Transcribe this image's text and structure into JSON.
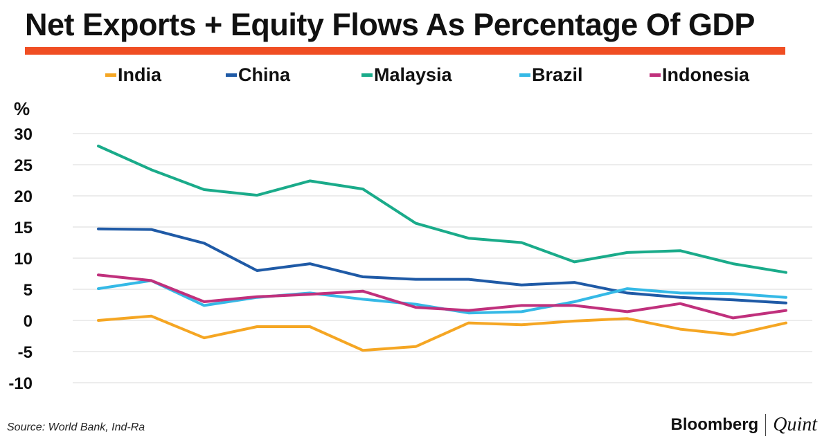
{
  "header": {
    "title": "Net Exports + Equity Flows As Percentage Of GDP",
    "rule_color": "#f04e23"
  },
  "chart_data": {
    "type": "line",
    "title": "Net Exports + Equity Flows As Percentage Of GDP",
    "ylabel": "%",
    "xlabel": "",
    "ylim": [
      -10,
      30
    ],
    "yticks": [
      30,
      25,
      20,
      15,
      10,
      5,
      0,
      -5,
      -10
    ],
    "grid": true,
    "legend_position": "top",
    "x": [
      1,
      2,
      3,
      4,
      5,
      6,
      7,
      8,
      9,
      10,
      11,
      12,
      13,
      14
    ],
    "series": [
      {
        "name": "India",
        "color": "#f5a623",
        "values": [
          0,
          0.7,
          -2.8,
          -1,
          -1,
          -4.8,
          -4.2,
          -0.4,
          -0.7,
          -0.1,
          0.3,
          -1.4,
          -2.3,
          -0.4
        ]
      },
      {
        "name": "China",
        "color": "#1f5aa6",
        "values": [
          14.7,
          14.6,
          12.4,
          8,
          9.1,
          7,
          6.6,
          6.6,
          5.7,
          6.1,
          4.4,
          3.7,
          3.3,
          2.8
        ]
      },
      {
        "name": "Malaysia",
        "color": "#1aab8a",
        "values": [
          28,
          24.2,
          21,
          20.1,
          22.4,
          21.1,
          15.6,
          13.2,
          12.5,
          9.4,
          10.9,
          11.2,
          9.1,
          7.7
        ]
      },
      {
        "name": "Brazil",
        "color": "#35b9e6",
        "values": [
          5.1,
          6.4,
          2.4,
          3.7,
          4.4,
          3.4,
          2.6,
          1.2,
          1.4,
          3,
          5.1,
          4.4,
          4.3,
          3.7
        ]
      },
      {
        "name": "Indonesia",
        "color": "#c0307c",
        "values": [
          7.3,
          6.4,
          3,
          3.8,
          4.2,
          4.7,
          2.1,
          1.6,
          2.4,
          2.4,
          1.4,
          2.7,
          0.4,
          1.6
        ]
      }
    ]
  },
  "footer": {
    "source": "Source: World Bank, Ind-Ra",
    "brand": "Bloomberg",
    "brand_sub": "Quint"
  }
}
